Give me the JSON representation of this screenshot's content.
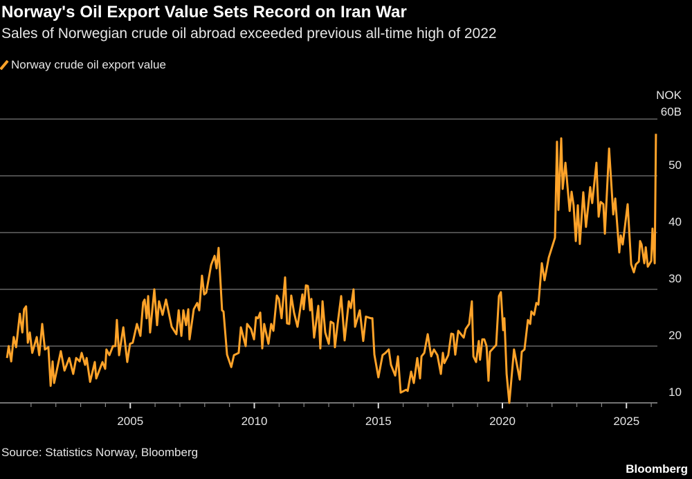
{
  "header": {
    "title": "Norway's Oil Export Value Sets Record on Iran War",
    "subtitle": "Sales of Norwegian crude oil abroad exceeded previous all-time high of 2022"
  },
  "footer": {
    "source": "Source: Statistics Norway, Bloomberg",
    "brand": "Bloomberg"
  },
  "colors": {
    "background": "#000000",
    "series": "#ffa329",
    "grid": "#7a7a7a"
  },
  "chart_data": {
    "type": "line",
    "title": "Norway's Oil Export Value Sets Record on Iran War",
    "xlabel": "",
    "ylabel": "",
    "y_unit_label": [
      "NOK",
      "60B"
    ],
    "ylim": [
      10,
      60
    ],
    "yticks": [
      10,
      20,
      30,
      40,
      50,
      60
    ],
    "ytick_labels": [
      "10",
      "20",
      "30",
      "40",
      "50",
      "60B"
    ],
    "xlim": [
      2000,
      2026.6
    ],
    "xticks": [
      2005,
      2010,
      2015,
      2020,
      2025
    ],
    "xtick_labels": [
      "2005",
      "2010",
      "2015",
      "2020",
      "2025"
    ],
    "grid": "horizontal",
    "legend": "top-left",
    "series": [
      {
        "name": "Norway crude oil export value",
        "color": "#ffa329",
        "points": [
          [
            2000.03,
            17.9
          ],
          [
            2000.1,
            20
          ],
          [
            2000.2,
            17.3
          ],
          [
            2000.3,
            21.6
          ],
          [
            2000.4,
            19.8
          ],
          [
            2000.55,
            25.7
          ],
          [
            2000.65,
            22.4
          ],
          [
            2000.72,
            26.5
          ],
          [
            2000.8,
            27
          ],
          [
            2000.87,
            20.6
          ],
          [
            2000.95,
            22.4
          ],
          [
            2001.05,
            18.8
          ],
          [
            2001.23,
            21.6
          ],
          [
            2001.33,
            18.4
          ],
          [
            2001.45,
            23.9
          ],
          [
            2001.56,
            19.4
          ],
          [
            2001.7,
            19.8
          ],
          [
            2001.79,
            13
          ],
          [
            2001.87,
            17.3
          ],
          [
            2001.93,
            13.5
          ],
          [
            2002.2,
            19.1
          ],
          [
            2002.35,
            15.7
          ],
          [
            2002.54,
            17.9
          ],
          [
            2002.7,
            15.1
          ],
          [
            2002.82,
            17.9
          ],
          [
            2002.96,
            17.3
          ],
          [
            2003.04,
            18.8
          ],
          [
            2003.18,
            16.7
          ],
          [
            2003.24,
            17.9
          ],
          [
            2003.38,
            13.7
          ],
          [
            2003.57,
            17.2
          ],
          [
            2003.63,
            14.3
          ],
          [
            2003.88,
            17.2
          ],
          [
            2003.99,
            16
          ],
          [
            2004.04,
            19.4
          ],
          [
            2004.16,
            18.4
          ],
          [
            2004.3,
            20
          ],
          [
            2004.4,
            20
          ],
          [
            2004.46,
            24.6
          ],
          [
            2004.55,
            18.4
          ],
          [
            2004.72,
            23.3
          ],
          [
            2004.88,
            17.2
          ],
          [
            2004.99,
            20.4
          ],
          [
            2005.1,
            20.6
          ],
          [
            2005.27,
            23.9
          ],
          [
            2005.41,
            21.8
          ],
          [
            2005.52,
            27.7
          ],
          [
            2005.58,
            28.2
          ],
          [
            2005.66,
            24.9
          ],
          [
            2005.72,
            28.8
          ],
          [
            2005.8,
            22.4
          ],
          [
            2005.97,
            30
          ],
          [
            2006.08,
            23.7
          ],
          [
            2006.16,
            27.9
          ],
          [
            2006.3,
            25.5
          ],
          [
            2006.44,
            28.2
          ],
          [
            2006.67,
            23.4
          ],
          [
            2006.86,
            22.1
          ],
          [
            2006.95,
            26.3
          ],
          [
            2007.06,
            21.8
          ],
          [
            2007.14,
            26.3
          ],
          [
            2007.25,
            23.7
          ],
          [
            2007.34,
            26.5
          ],
          [
            2007.39,
            21.2
          ],
          [
            2007.56,
            26.5
          ],
          [
            2007.7,
            27.6
          ],
          [
            2007.78,
            26.3
          ],
          [
            2007.89,
            32.4
          ],
          [
            2007.98,
            29.1
          ],
          [
            2008.06,
            29.4
          ],
          [
            2008.26,
            34.3
          ],
          [
            2008.4,
            35.9
          ],
          [
            2008.48,
            33.7
          ],
          [
            2008.56,
            37.3
          ],
          [
            2008.7,
            26.3
          ],
          [
            2008.76,
            26.1
          ],
          [
            2008.9,
            18.5
          ],
          [
            2009.07,
            16.3
          ],
          [
            2009.18,
            18.4
          ],
          [
            2009.37,
            18.8
          ],
          [
            2009.46,
            23.3
          ],
          [
            2009.65,
            20
          ],
          [
            2009.71,
            23.9
          ],
          [
            2009.87,
            23
          ],
          [
            2009.99,
            21.2
          ],
          [
            2010.07,
            25.1
          ],
          [
            2010.15,
            24.9
          ],
          [
            2010.24,
            25.9
          ],
          [
            2010.32,
            19.6
          ],
          [
            2010.4,
            23.9
          ],
          [
            2010.57,
            20.4
          ],
          [
            2010.68,
            23.9
          ],
          [
            2010.77,
            22.7
          ],
          [
            2010.91,
            28.9
          ],
          [
            2010.99,
            28.3
          ],
          [
            2011.1,
            24.9
          ],
          [
            2011.24,
            32.1
          ],
          [
            2011.32,
            24
          ],
          [
            2011.41,
            23.9
          ],
          [
            2011.49,
            28.9
          ],
          [
            2011.6,
            25.9
          ],
          [
            2011.74,
            23.4
          ],
          [
            2011.94,
            29.1
          ],
          [
            2011.99,
            26.5
          ],
          [
            2012.08,
            30.7
          ],
          [
            2012.16,
            30.6
          ],
          [
            2012.25,
            26.3
          ],
          [
            2012.3,
            28.3
          ],
          [
            2012.41,
            21.5
          ],
          [
            2012.58,
            27.1
          ],
          [
            2012.66,
            19.6
          ],
          [
            2012.75,
            27.9
          ],
          [
            2012.86,
            22.4
          ],
          [
            2013.0,
            20.4
          ],
          [
            2013.08,
            24.3
          ],
          [
            2013.19,
            24
          ],
          [
            2013.25,
            19.8
          ],
          [
            2013.36,
            24
          ],
          [
            2013.5,
            28.8
          ],
          [
            2013.64,
            21
          ],
          [
            2013.81,
            27.9
          ],
          [
            2013.89,
            26.7
          ],
          [
            2014.0,
            30
          ],
          [
            2014.06,
            23.4
          ],
          [
            2014.25,
            26.3
          ],
          [
            2014.39,
            20.9
          ],
          [
            2014.5,
            25.2
          ],
          [
            2014.7,
            24.9
          ],
          [
            2014.76,
            24.9
          ],
          [
            2014.84,
            18.5
          ],
          [
            2015.0,
            14.5
          ],
          [
            2015.17,
            18.4
          ],
          [
            2015.29,
            18.8
          ],
          [
            2015.42,
            19.4
          ],
          [
            2015.51,
            16.7
          ],
          [
            2015.68,
            14.8
          ],
          [
            2015.79,
            18.2
          ],
          [
            2015.9,
            11.8
          ],
          [
            2016.12,
            12.3
          ],
          [
            2016.18,
            12.1
          ],
          [
            2016.32,
            15.5
          ],
          [
            2016.43,
            13.5
          ],
          [
            2016.57,
            17.9
          ],
          [
            2016.68,
            14.3
          ],
          [
            2016.74,
            18.2
          ],
          [
            2016.85,
            18.8
          ],
          [
            2016.99,
            22.1
          ],
          [
            2017.13,
            18.2
          ],
          [
            2017.24,
            19.4
          ],
          [
            2017.38,
            18.4
          ],
          [
            2017.52,
            15.1
          ],
          [
            2017.6,
            18.8
          ],
          [
            2017.66,
            17
          ],
          [
            2017.82,
            18.4
          ],
          [
            2017.94,
            22.2
          ],
          [
            2018.02,
            22.1
          ],
          [
            2018.1,
            18.5
          ],
          [
            2018.22,
            22.7
          ],
          [
            2018.44,
            21.5
          ],
          [
            2018.52,
            23
          ],
          [
            2018.66,
            23.9
          ],
          [
            2018.77,
            27.9
          ],
          [
            2018.83,
            18.2
          ],
          [
            2018.94,
            17.2
          ],
          [
            2019.05,
            20.9
          ],
          [
            2019.1,
            17.6
          ],
          [
            2019.19,
            21.2
          ],
          [
            2019.27,
            21.2
          ],
          [
            2019.36,
            20
          ],
          [
            2019.44,
            13.9
          ],
          [
            2019.5,
            19
          ],
          [
            2019.75,
            20.2
          ],
          [
            2019.86,
            28.8
          ],
          [
            2019.94,
            29.5
          ],
          [
            2020.03,
            22.8
          ],
          [
            2020.08,
            24.9
          ],
          [
            2020.17,
            15.1
          ],
          [
            2020.28,
            10
          ],
          [
            2020.47,
            19.4
          ],
          [
            2020.7,
            14.1
          ],
          [
            2020.78,
            19
          ],
          [
            2020.89,
            19.4
          ],
          [
            2021.03,
            24.6
          ],
          [
            2021.12,
            23.9
          ],
          [
            2021.17,
            26.1
          ],
          [
            2021.28,
            25.5
          ],
          [
            2021.37,
            27.6
          ],
          [
            2021.45,
            27.3
          ],
          [
            2021.59,
            34.6
          ],
          [
            2021.7,
            31.6
          ],
          [
            2021.87,
            35.6
          ],
          [
            2022.12,
            39.1
          ],
          [
            2022.2,
            56
          ],
          [
            2022.26,
            44
          ],
          [
            2022.37,
            56.6
          ],
          [
            2022.43,
            47.7
          ],
          [
            2022.54,
            52.3
          ],
          [
            2022.71,
            43.8
          ],
          [
            2022.79,
            47.2
          ],
          [
            2022.87,
            44.8
          ],
          [
            2022.96,
            38.5
          ],
          [
            2023.04,
            44.8
          ],
          [
            2023.12,
            38
          ],
          [
            2023.26,
            47.1
          ],
          [
            2023.37,
            41
          ],
          [
            2023.54,
            48
          ],
          [
            2023.62,
            45.2
          ],
          [
            2023.79,
            52.3
          ],
          [
            2023.88,
            42.8
          ],
          [
            2023.96,
            45.4
          ],
          [
            2024.07,
            45
          ],
          [
            2024.13,
            39.8
          ],
          [
            2024.3,
            54.8
          ],
          [
            2024.47,
            43.2
          ],
          [
            2024.55,
            46
          ],
          [
            2024.71,
            36.5
          ],
          [
            2024.77,
            39.5
          ],
          [
            2024.85,
            37.9
          ],
          [
            2025.05,
            45
          ],
          [
            2025.19,
            34.4
          ],
          [
            2025.3,
            33
          ],
          [
            2025.38,
            34.4
          ],
          [
            2025.5,
            34.9
          ],
          [
            2025.55,
            38.5
          ],
          [
            2025.61,
            37.9
          ],
          [
            2025.72,
            34.6
          ],
          [
            2025.78,
            37.4
          ],
          [
            2025.86,
            34
          ],
          [
            2026.0,
            35
          ],
          [
            2026.05,
            40.7
          ],
          [
            2026.14,
            34.6
          ],
          [
            2026.19,
            57.4
          ]
        ]
      }
    ]
  }
}
